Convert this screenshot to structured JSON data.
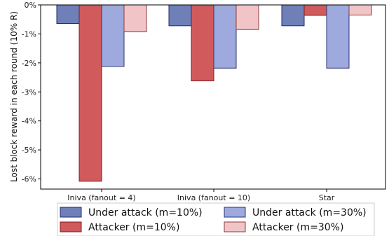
{
  "chart_data": {
    "type": "bar",
    "categories": [
      "Iniva (fanout = 4)",
      "Iniva (fanout = 10)",
      "Star"
    ],
    "series": [
      {
        "name": "Under attack (m=10%)",
        "values": [
          -0.64,
          -0.72,
          -0.72
        ],
        "color": "#6f80b9",
        "edge": "#1f2d6b"
      },
      {
        "name": "Attacker (m=10%)",
        "values": [
          -6.08,
          -2.62,
          -0.36
        ],
        "color": "#d05a5c",
        "edge": "#7a1e22"
      },
      {
        "name": "Under attack (m=30%)",
        "values": [
          -2.12,
          -2.18,
          -2.18
        ],
        "color": "#9ea9dd",
        "edge": "#2a3576"
      },
      {
        "name": "Attacker (m=30%)",
        "values": [
          -0.93,
          -0.85,
          -0.35
        ],
        "color": "#f1c5c7",
        "edge": "#8b3a3d"
      }
    ],
    "ylabel": "Lost block reward in each round (10% R)",
    "xlabel": "",
    "ylim": [
      -6.35,
      0
    ],
    "yticks": [
      0,
      -1,
      -2,
      -3,
      -4,
      -5,
      -6
    ],
    "ytick_labels": [
      "0%",
      "-1%",
      "-2%",
      "-3%",
      "-4%",
      "-5%",
      "-6%"
    ],
    "legend_position": "bottom",
    "grid": false
  }
}
